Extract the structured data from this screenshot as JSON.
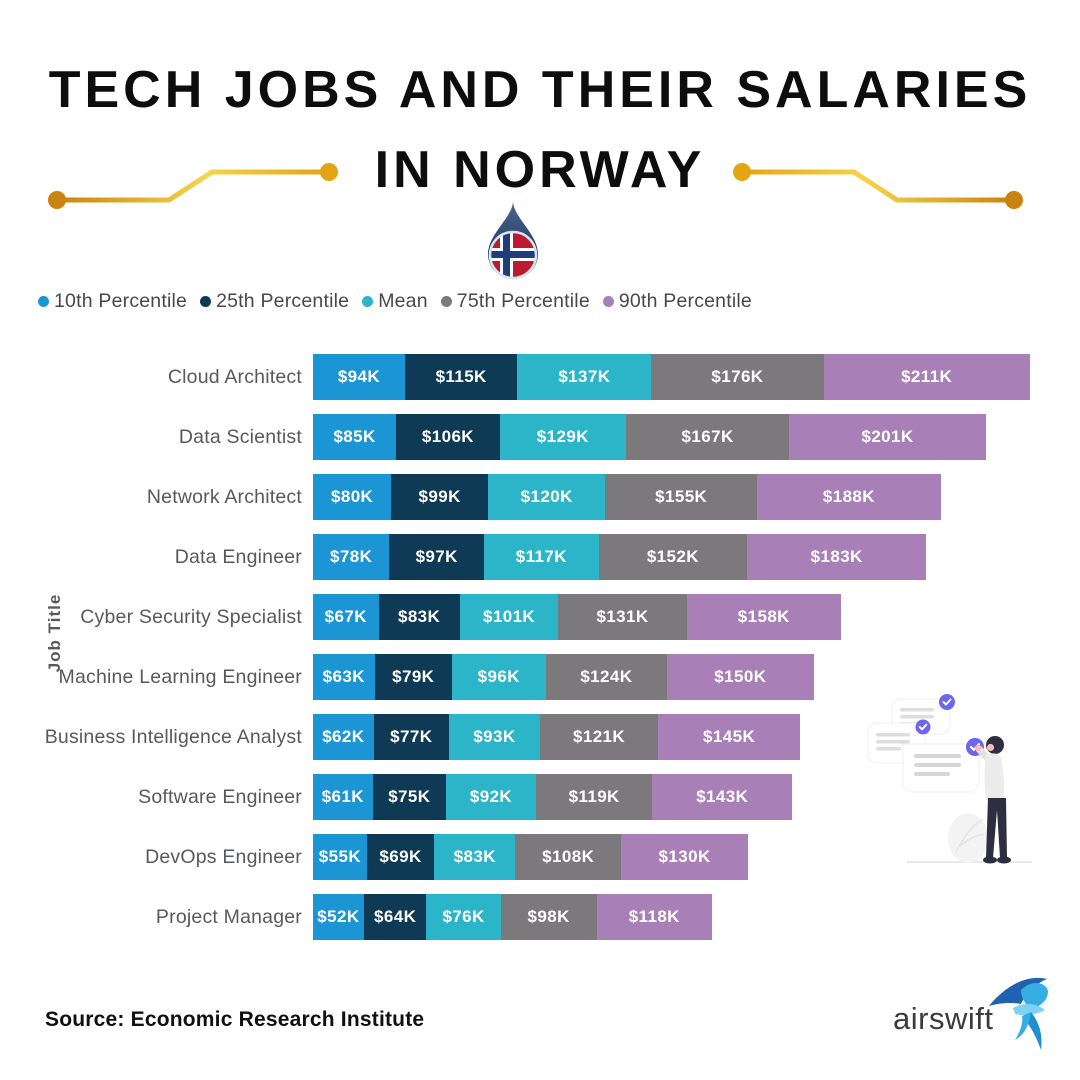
{
  "title": {
    "line1": "TECH JOBS AND THEIR SALARIES",
    "line2": "IN NORWAY"
  },
  "legend": [
    {
      "label": "10th Percentile",
      "color": "#1B95D4"
    },
    {
      "label": "25th Percentile",
      "color": "#0F3A55"
    },
    {
      "label": "Mean",
      "color": "#2CB5C8"
    },
    {
      "label": "75th Percentile",
      "color": "#7B797C"
    },
    {
      "label": "90th Percentile",
      "color": "#A87FB7"
    }
  ],
  "chart_data": {
    "type": "bar",
    "orientation": "horizontal",
    "ylabel": "Job Title",
    "label_prefix": "$",
    "label_suffix": "K",
    "legend_position": "top",
    "grid": false,
    "categories": [
      "Cloud Architect",
      "Data Scientist",
      "Network Architect",
      "Data Engineer",
      "Cyber Security Specialist",
      "Machine Learning Engineer",
      "Business Intelligence Analyst",
      "Software Engineer",
      "DevOps Engineer",
      "Project Manager"
    ],
    "series": [
      {
        "name": "10th Percentile",
        "values": [
          94,
          85,
          80,
          78,
          67,
          63,
          62,
          61,
          55,
          52
        ]
      },
      {
        "name": "25th Percentile",
        "values": [
          115,
          106,
          99,
          97,
          83,
          79,
          77,
          75,
          69,
          64
        ]
      },
      {
        "name": "Mean",
        "values": [
          137,
          129,
          120,
          117,
          101,
          96,
          93,
          92,
          83,
          76
        ]
      },
      {
        "name": "75th Percentile",
        "values": [
          176,
          167,
          155,
          152,
          131,
          124,
          121,
          119,
          108,
          98
        ]
      },
      {
        "name": "90th Percentile",
        "values": [
          211,
          201,
          188,
          183,
          158,
          150,
          145,
          143,
          130,
          118
        ]
      }
    ]
  },
  "footer": {
    "source": "Source: Economic Research Institute",
    "logo_text": "airswift"
  }
}
